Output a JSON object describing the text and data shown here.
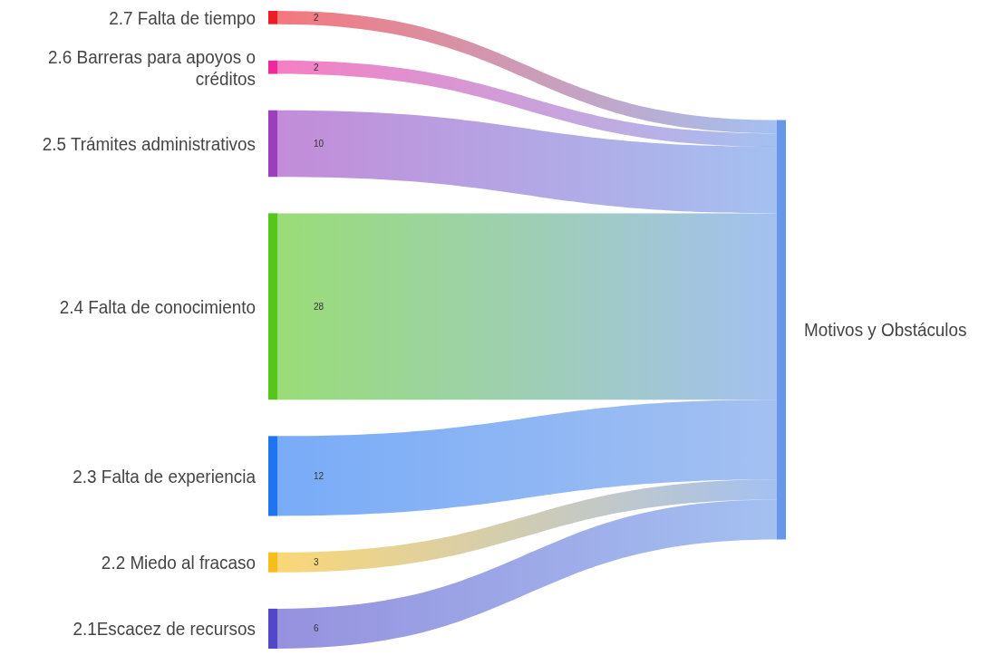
{
  "chart_data": {
    "type": "other",
    "data_labels": true,
    "categories": [
      "2.7 Falta de tiempo",
      "2.6 Barreras para apoyos o créditos",
      "2.5 Trámites administrativos",
      "2.4 Falta de conocimiento",
      "2.3 Falta de experiencia",
      "2.2 Miedo al fracaso",
      "2.1Escacez de recursos"
    ],
    "values": [
      2,
      2,
      10,
      28,
      12,
      3,
      6
    ],
    "colors": [
      "#ee1c25",
      "#f0299a",
      "#9b3fbf",
      "#55c61c",
      "#1f74f2",
      "#f7bd1d",
      "#5048c8"
    ],
    "annotations": [
      "Motivos y Obstáculos"
    ]
  }
}
